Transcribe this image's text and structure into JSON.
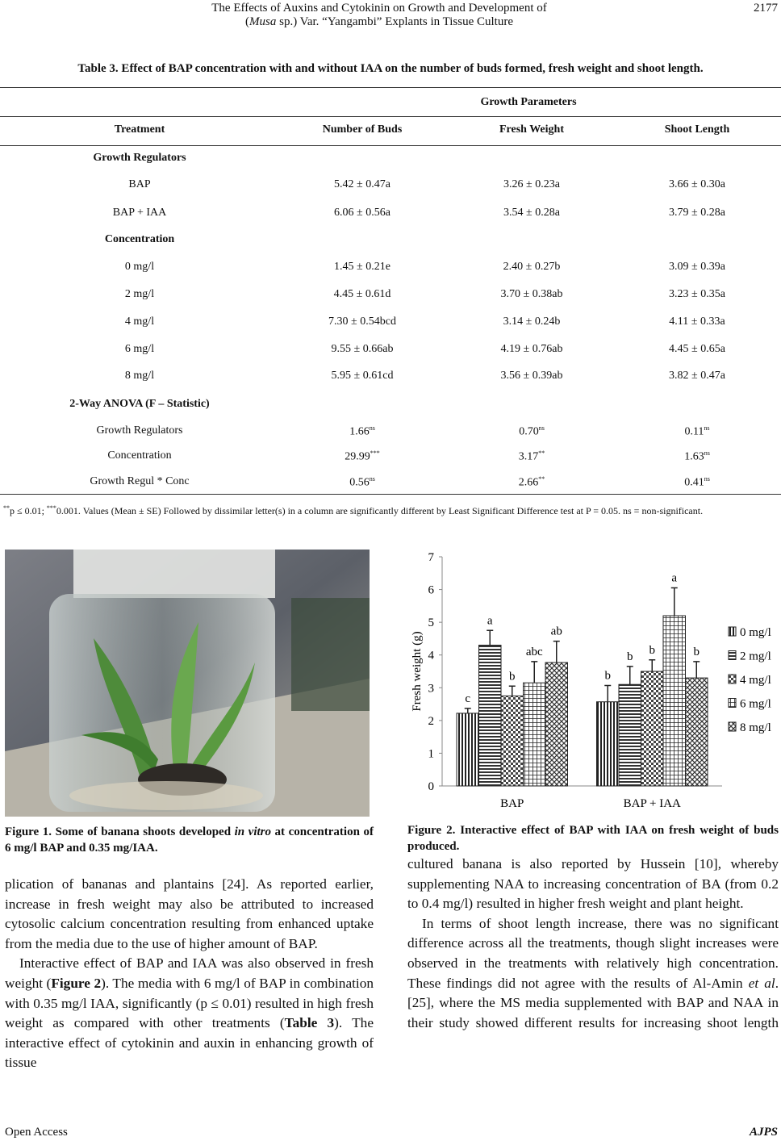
{
  "header": {
    "title_line1": "The Effects of Auxins and Cytokinin on Growth and Development of",
    "title_line2": [
      "(",
      {
        "i": "Musa"
      },
      " sp.) Var. “Yangambi” Explants in Tissue Culture"
    ],
    "page_number": "2177"
  },
  "table": {
    "caption": "Table 3. Effect of BAP concentration with and without IAA on the number of buds formed, fresh weight and shoot length.",
    "group_header": "Growth Parameters",
    "columns": [
      "Treatment",
      "Number of Buds",
      "Fresh Weight",
      "Shoot Length"
    ],
    "rows": [
      {
        "section": "Growth Regulators"
      },
      {
        "cells": [
          "BAP",
          "5.42 ± 0.47a",
          "3.26 ± 0.23a",
          "3.66 ± 0.30a"
        ]
      },
      {
        "cells": [
          "BAP + IAA",
          "6.06 ± 0.56a",
          "3.54 ± 0.28a",
          "3.79 ± 0.28a"
        ]
      },
      {
        "section": "Concentration"
      },
      {
        "cells": [
          "0 mg/l",
          "1.45 ± 0.21e",
          "2.40 ± 0.27b",
          "3.09 ± 0.39a"
        ]
      },
      {
        "cells": [
          "2 mg/l",
          "4.45 ± 0.61d",
          "3.70 ± 0.38ab",
          "3.23 ± 0.35a"
        ]
      },
      {
        "cells": [
          "4 mg/l",
          "7.30 ± 0.54bcd",
          "3.14 ± 0.24b",
          "4.11 ± 0.33a"
        ]
      },
      {
        "cells": [
          "6 mg/l",
          "9.55 ± 0.66ab",
          "4.19 ± 0.76ab",
          "4.45 ± 0.65a"
        ]
      },
      {
        "cells": [
          "8 mg/l",
          "5.95 ± 0.61cd",
          "3.56 ± 0.39ab",
          "3.82 ± 0.47a"
        ]
      },
      {
        "section": "2-Way ANOVA (F – Statistic)"
      },
      {
        "cells": [
          "Growth Regulators",
          [
            "1.66",
            "ns"
          ],
          [
            "0.70",
            "ns"
          ],
          [
            "0.11",
            "ns"
          ]
        ]
      },
      {
        "cells": [
          "Concentration",
          [
            "29.99",
            "***"
          ],
          [
            "3.17",
            "**"
          ],
          [
            "1.63",
            "ns"
          ]
        ]
      },
      {
        "cells": [
          "Growth Regul * Conc",
          [
            "0.56",
            "ns"
          ],
          [
            "2.66",
            "**"
          ],
          [
            "0.41",
            "ns"
          ]
        ]
      }
    ],
    "footnote": [
      {
        "sup": "**"
      },
      "p ≤ 0.01; ",
      {
        "sup": "***"
      },
      "0.001. Values (Mean ± SE) Followed by dissimilar letter(s) in a column are significantly different by Least Significant Difference test at P = 0.05. ns = non-significant."
    ]
  },
  "figure1": {
    "caption": [
      {
        "b": "Figure 1. Some of banana shoots developed "
      },
      {
        "bi": "in vitro"
      },
      {
        "b": " at concentration of 6 mg/l BAP and 0.35 mg/IAA."
      }
    ]
  },
  "chart_data": {
    "type": "bar",
    "ylabel": "Fresh weight (g)",
    "categories": [
      "BAP",
      "BAP + IAA"
    ],
    "ylim": [
      0,
      7
    ],
    "yticks": [
      0,
      1,
      2,
      3,
      4,
      5,
      6,
      7
    ],
    "legend": "right",
    "series": [
      {
        "name": "0 mg/l",
        "pattern": "vertical",
        "values": [
          2.22,
          2.57
        ],
        "errors": [
          0.15,
          0.5
        ],
        "labels": [
          "c",
          "b"
        ]
      },
      {
        "name": "2 mg/l",
        "pattern": "horizontal",
        "values": [
          4.3,
          3.1
        ],
        "errors": [
          0.45,
          0.55
        ],
        "labels": [
          "a",
          "b"
        ]
      },
      {
        "name": "4 mg/l",
        "pattern": "checker",
        "values": [
          2.75,
          3.5
        ],
        "errors": [
          0.3,
          0.35
        ],
        "labels": [
          "b",
          "b"
        ]
      },
      {
        "name": "6 mg/l",
        "pattern": "grid",
        "values": [
          3.15,
          5.2
        ],
        "errors": [
          0.65,
          0.85
        ],
        "labels": [
          "abc",
          "a"
        ]
      },
      {
        "name": "8 mg/l",
        "pattern": "diamond",
        "values": [
          3.77,
          3.3
        ],
        "errors": [
          0.65,
          0.5
        ],
        "labels": [
          "ab",
          "b"
        ]
      }
    ]
  },
  "figure2": {
    "caption": [
      {
        "b": "Figure 2. Interactive effect of BAP with IAA on fresh weight of buds produced."
      }
    ]
  },
  "body_left": [
    [
      "plication of bananas and plantains [24]. As reported earlier, increase in fresh weight may also be attributed to increased cytosolic calcium concentration resulting from enhanced uptake from the media due to the use of higher amount of BAP."
    ],
    [
      "Interactive effect of BAP and IAA was also observed in fresh weight (",
      {
        "b": "Figure 2"
      },
      "). The media with 6 mg/l of BAP in combination with 0.35 mg/l IAA, significantly (p ≤ 0.01) resulted in high fresh weight as compared with other treatments (",
      {
        "b": "Table 3"
      },
      "). The interactive effect of cytokinin and auxin in enhancing growth of tissue"
    ]
  ],
  "body_right": [
    [
      "cultured banana is also reported by Hussein [10], whereby supplementing NAA to increasing concentration of BA (from 0.2 to 0.4 mg/l) resulted in higher fresh weight and plant height."
    ],
    [
      "In terms of shoot length increase, there was no significant difference across all the treatments, though slight increases were observed in the treatments with relatively high concentration. These findings did not agree with the results of Al-Amin ",
      {
        "i": "et al"
      },
      ". [25], where the MS media supplemented with BAP and NAA in their study showed different results for increasing shoot length"
    ]
  ],
  "footer": {
    "left": "Open Access",
    "right": "AJPS"
  }
}
